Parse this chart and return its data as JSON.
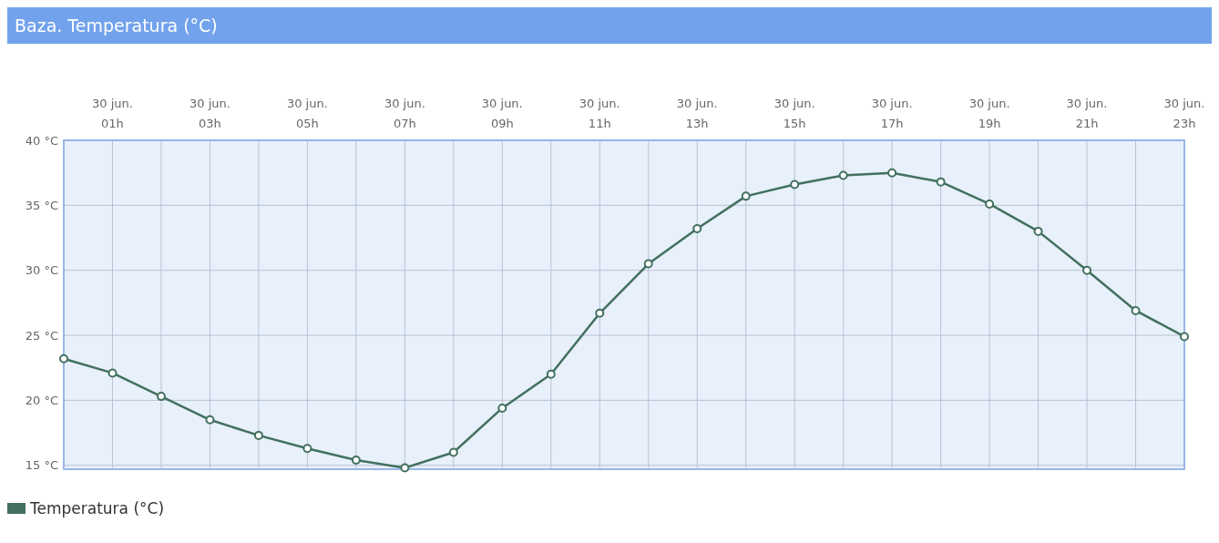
{
  "chart_data": {
    "type": "line",
    "title": "Baza. Temperatura (°C)",
    "categories": [
      null,
      "30 jun.\n01h",
      null,
      "30 jun.\n03h",
      null,
      "30 jun.\n05h",
      null,
      "30 jun.\n07h",
      null,
      "30 jun.\n09h",
      null,
      "30 jun.\n11h",
      null,
      "30 jun.\n13h",
      null,
      "30 jun.\n15h",
      null,
      "30 jun.\n17h",
      null,
      "30 jun.\n19h",
      null,
      "30 jun.\n21h",
      null,
      "30 jun.\n23h"
    ],
    "series": [
      {
        "name": "Temperatura (°C)",
        "color": "#42705f",
        "values": [
          23.2,
          22.1,
          20.3,
          18.5,
          17.3,
          16.3,
          15.4,
          14.8,
          16.0,
          19.4,
          22.0,
          26.7,
          30.5,
          33.2,
          35.7,
          36.6,
          37.3,
          37.5,
          36.8,
          35.1,
          33.0,
          30.0,
          26.9,
          24.9
        ]
      }
    ],
    "ylim": [
      14.7,
      40
    ],
    "yticks": [
      {
        "value": 15,
        "label": "15 °C"
      },
      {
        "value": 20,
        "label": "20 °C"
      },
      {
        "value": 25,
        "label": "25 °C"
      },
      {
        "value": 30,
        "label": "30 °C"
      },
      {
        "value": 35,
        "label": "35 °C"
      },
      {
        "value": 40,
        "label": "40 °C"
      }
    ],
    "grid": true,
    "legend": "bottom left",
    "marker": "circle",
    "line_style": "solid"
  }
}
